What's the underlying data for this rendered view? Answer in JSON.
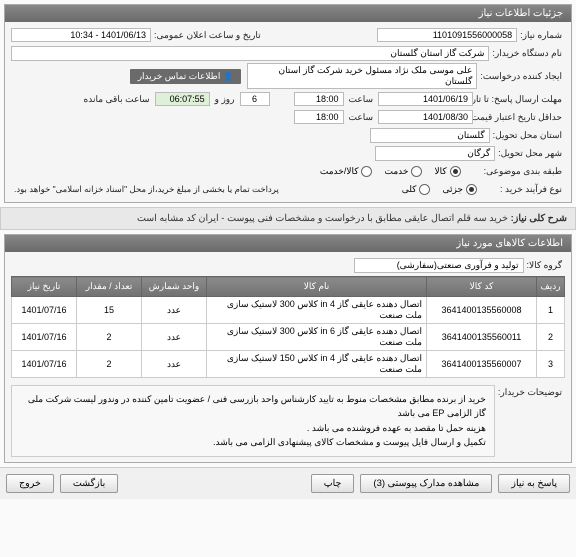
{
  "panel1_title": "جزئیات اطلاعات نیاز",
  "fields": {
    "need_number_label": "شماره نیاز:",
    "need_number": "1101091556000058",
    "announce_label": "تاریخ و ساعت اعلان عمومی:",
    "announce_value": "1401/06/13 - 10:34",
    "buyer_device_label": "نام دستگاه خریدار:",
    "buyer_device": "شرکت گاز استان گلستان",
    "requester_label": "ایجاد کننده درخواست:",
    "requester": "علی موسی ملک نژاد مسئول خرید شرکت گاز استان گلستان",
    "contact_badge": "اطلاعات تماس خریدار",
    "deadline_label": "مهلت ارسال پاسخ: تا تاریخ:",
    "deadline_date": "1401/06/19",
    "deadline_time_label": "ساعت",
    "deadline_time": "18:00",
    "days_label": "روز و",
    "days_value": "6",
    "hours_left": "06:07:55",
    "hours_left_label": "ساعت باقی مانده",
    "validity_label": "حداقل تاریخ اعتبار قیمت تا تاریخ:",
    "validity_date": "1401/08/30",
    "validity_time_label": "ساعت",
    "validity_time": "18:00",
    "delivery_state_label": "استان محل تحویل:",
    "delivery_state": "گلستان",
    "delivery_city_label": "شهر محل تحویل:",
    "delivery_city": "گرگان",
    "topic_class_label": "طبقه بندی موضوعی:",
    "topic_goods": "کالا",
    "topic_service": "خدمت",
    "topic_both": "کالا/خدمت",
    "buy_process_label": "نوع فرآیند خرید :",
    "buy_process_partial": "جزئی",
    "buy_process_full": "کلی",
    "buy_process_note": "پرداخت تمام یا بخشی از مبلغ خرید،از محل \"اسناد خزانه اسلامی\" خواهد بود."
  },
  "need_desc_label": "شرح کلی نیاز:",
  "need_desc": "خرید سه قلم اتصال عایقی مطابق با درخواست و مشخصات فنی پیوست - ایران کد مشابه است",
  "panel2_title": "اطلاعات کالاهای مورد نیاز",
  "goods_group_label": "گروه کالا:",
  "goods_group": "تولید و فرآوری صنعتی(سفارشی)",
  "table": {
    "headers": [
      "ردیف",
      "کد کالا",
      "نام کالا",
      "واحد شمارش",
      "تعداد / مقدار",
      "تاریخ نیاز"
    ],
    "rows": [
      [
        "1",
        "3641400135560008",
        "اتصال دهنده عایقی گاز 4 in کلاس 300 لاستیک سازی ملت صنعت",
        "عدد",
        "15",
        "1401/07/16"
      ],
      [
        "2",
        "3641400135560011",
        "اتصال دهنده عایقی گاز 6 in کلاس 300 لاستیک سازی ملت صنعت",
        "عدد",
        "2",
        "1401/07/16"
      ],
      [
        "3",
        "3641400135560007",
        "اتصال دهنده عایقی گاز 4 in کلاس 150 لاستیک سازی ملت صنعت",
        "عدد",
        "2",
        "1401/07/16"
      ]
    ]
  },
  "buyer_notes_label": "توضیحات خریدار:",
  "buyer_notes_lines": [
    "خرید از برنده مطابق مشخصات منوط به تایید کارشناس واحد بازرسی فنی / عضویت تامین کننده در وندور لیست شرکت ملی گاز الزامی EP می باشد",
    "هزینه حمل تا مقصد به عهده فروشنده می باشد .",
    "تکمیل و ارسال فایل پیوست و مشخصات کالای پیشنهادی الزامی می باشد."
  ],
  "buttons": {
    "respond": "پاسخ به نیاز",
    "attachments": "مشاهده مدارک پیوستی (3)",
    "print": "چاپ",
    "back": "بازگشت",
    "exit": "خروج"
  }
}
